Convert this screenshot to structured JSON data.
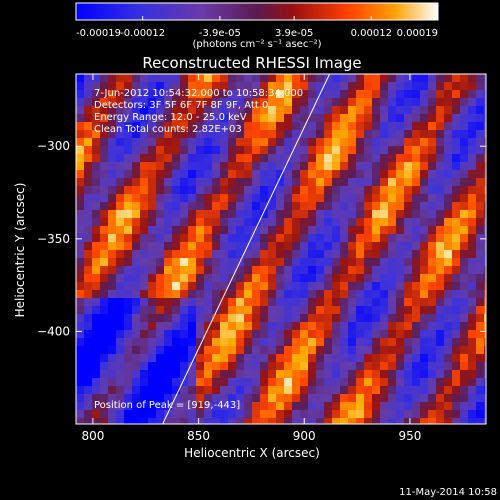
{
  "colorbar": {
    "tick_labels": [
      "-0.00019",
      "-0.00012",
      "-3.9e-05",
      "3.9e-05",
      "0.00012",
      "0.00019"
    ],
    "unit_label": "(photons cm⁻² s⁻¹ asec⁻²)"
  },
  "chart_data": {
    "type": "heatmap",
    "title": "Reconstructed RHESSI Image",
    "xlabel": "Heliocentric X (arcsec)",
    "ylabel": "Heliocentric Y (arcsec)",
    "xlim": [
      792,
      986
    ],
    "ylim": [
      -450,
      -261
    ],
    "x_ticks": [
      800,
      850,
      900,
      950
    ],
    "y_ticks": [
      -300,
      -350,
      -400
    ],
    "value_range": [
      -0.00019,
      0.00019
    ],
    "annotations": [
      "7-Jun-2012 10:54:32.000 to 10:58:34.000",
      "Detectors: 3F 5F 6F 7F 8F 9F, Att 0",
      "Energy Range: 12.0 - 25.0 keV",
      "Clean  Total counts: 2.82E+03"
    ],
    "peak_label": "Position of Peak = [919,-443]",
    "peak": {
      "x": 919,
      "y": -443
    },
    "limb_line": [
      [
        833,
        -450
      ],
      [
        912,
        -261
      ]
    ],
    "date_stamp": "11-May-2014 10:58",
    "colors": {
      "background": "#000000",
      "text": "#ffffff"
    }
  }
}
